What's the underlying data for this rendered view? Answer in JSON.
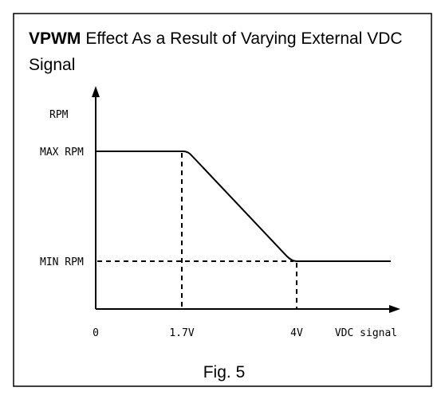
{
  "title": {
    "bold": "VPWM",
    "rest": "Effect As a Result of Varying External VDC",
    "line2": "Signal"
  },
  "y_axis": {
    "label": "RPM",
    "ticks": [
      "MAX RPM",
      "MIN RPM"
    ]
  },
  "x_axis": {
    "label": "VDC signal",
    "ticks": [
      "0",
      "1.7V",
      "4V"
    ]
  },
  "caption": "Fig. 5"
}
